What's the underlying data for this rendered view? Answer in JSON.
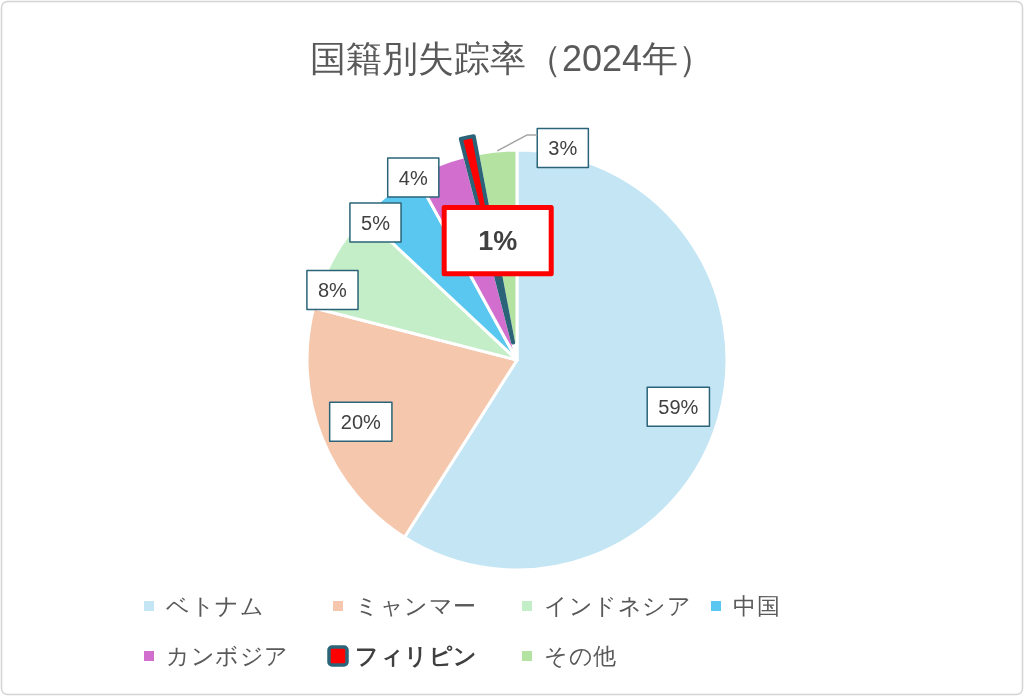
{
  "chart_data": {
    "type": "pie",
    "title": "国籍別失踪率（2024年）",
    "categories": [
      "ベトナム",
      "ミャンマー",
      "インドネシア",
      "中国",
      "カンボジア",
      "**フィリピン**",
      "その他"
    ],
    "values": [
      59,
      20,
      8,
      5,
      4,
      1,
      3
    ],
    "colors": [
      "#c4e5f4",
      "#f5c8ae",
      "#c4eec8",
      "#5ac7f0",
      "#d26fce",
      "#ff0000",
      "#b3e2a1"
    ],
    "value_labels": [
      "59%",
      "20%",
      "8%",
      "5%",
      "4%",
      "**1%**",
      "3%"
    ],
    "legend": "bottom"
  }
}
